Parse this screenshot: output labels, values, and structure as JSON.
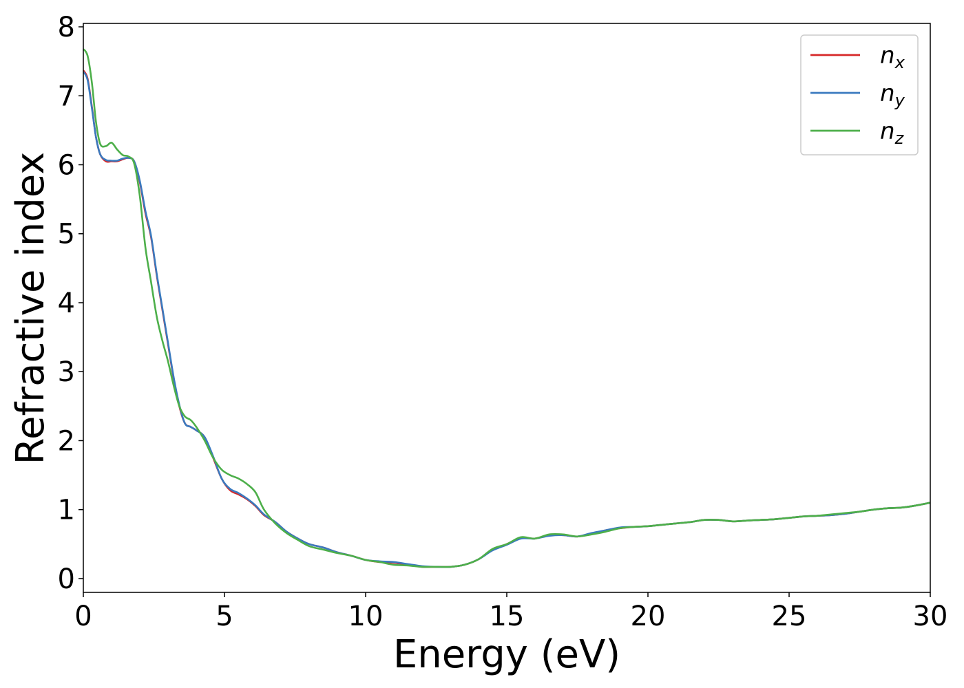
{
  "chart_data": {
    "type": "line",
    "title": "",
    "xlabel": "Energy (eV)",
    "ylabel": "Refractive index",
    "xlim": [
      0,
      30
    ],
    "ylim": [
      -0.2,
      8.05
    ],
    "xticks": [
      0,
      5,
      10,
      15,
      20,
      25,
      30
    ],
    "yticks": [
      0,
      1,
      2,
      3,
      4,
      5,
      6,
      7,
      8
    ],
    "grid": false,
    "legend_position": "top-right",
    "series": [
      {
        "name": "n_x",
        "legend_base": "n",
        "legend_sub": "x",
        "color": "#d62728",
        "points": [
          [
            0,
            7.37
          ],
          [
            0.15,
            7.25
          ],
          [
            0.3,
            6.85
          ],
          [
            0.45,
            6.4
          ],
          [
            0.6,
            6.15
          ],
          [
            0.8,
            6.05
          ],
          [
            1.0,
            6.05
          ],
          [
            1.2,
            6.05
          ],
          [
            1.4,
            6.08
          ],
          [
            1.6,
            6.1
          ],
          [
            1.8,
            6.05
          ],
          [
            2.0,
            5.75
          ],
          [
            2.2,
            5.3
          ],
          [
            2.4,
            4.95
          ],
          [
            2.6,
            4.4
          ],
          [
            2.8,
            3.9
          ],
          [
            3.0,
            3.4
          ],
          [
            3.2,
            2.9
          ],
          [
            3.4,
            2.5
          ],
          [
            3.6,
            2.25
          ],
          [
            3.8,
            2.2
          ],
          [
            4.0,
            2.15
          ],
          [
            4.3,
            2.05
          ],
          [
            4.6,
            1.75
          ],
          [
            4.9,
            1.45
          ],
          [
            5.2,
            1.28
          ],
          [
            5.5,
            1.22
          ],
          [
            5.8,
            1.15
          ],
          [
            6.1,
            1.05
          ],
          [
            6.4,
            0.92
          ],
          [
            6.8,
            0.82
          ],
          [
            7.2,
            0.68
          ],
          [
            7.6,
            0.58
          ],
          [
            8.0,
            0.5
          ],
          [
            8.5,
            0.45
          ],
          [
            9.0,
            0.38
          ],
          [
            9.5,
            0.33
          ],
          [
            10.0,
            0.27
          ],
          [
            10.5,
            0.24
          ],
          [
            11.0,
            0.23
          ],
          [
            11.5,
            0.2
          ],
          [
            12.0,
            0.17
          ],
          [
            12.5,
            0.17
          ],
          [
            13.0,
            0.17
          ],
          [
            13.5,
            0.2
          ],
          [
            14.0,
            0.28
          ],
          [
            14.5,
            0.42
          ],
          [
            15.0,
            0.5
          ],
          [
            15.5,
            0.59
          ],
          [
            16.0,
            0.58
          ],
          [
            16.5,
            0.63
          ],
          [
            17.0,
            0.63
          ],
          [
            17.5,
            0.61
          ],
          [
            18.0,
            0.65
          ],
          [
            18.5,
            0.7
          ],
          [
            19.0,
            0.73
          ],
          [
            19.5,
            0.75
          ],
          [
            20.0,
            0.76
          ],
          [
            20.5,
            0.78
          ],
          [
            21.0,
            0.8
          ],
          [
            21.5,
            0.82
          ],
          [
            22.0,
            0.85
          ],
          [
            22.5,
            0.85
          ],
          [
            23.0,
            0.83
          ],
          [
            23.5,
            0.84
          ],
          [
            24.0,
            0.85
          ],
          [
            24.5,
            0.86
          ],
          [
            25.0,
            0.88
          ],
          [
            25.5,
            0.9
          ],
          [
            26.0,
            0.91
          ],
          [
            26.5,
            0.92
          ],
          [
            27.0,
            0.94
          ],
          [
            27.5,
            0.97
          ],
          [
            28.0,
            1.0
          ],
          [
            28.5,
            1.02
          ],
          [
            29.0,
            1.03
          ],
          [
            29.5,
            1.06
          ],
          [
            30.0,
            1.1
          ]
        ]
      },
      {
        "name": "n_y",
        "legend_base": "n",
        "legend_sub": "y",
        "color": "#3a7abf",
        "points": [
          [
            0,
            7.35
          ],
          [
            0.15,
            7.23
          ],
          [
            0.3,
            6.83
          ],
          [
            0.45,
            6.4
          ],
          [
            0.6,
            6.15
          ],
          [
            0.8,
            6.07
          ],
          [
            1.0,
            6.06
          ],
          [
            1.2,
            6.06
          ],
          [
            1.4,
            6.09
          ],
          [
            1.6,
            6.1
          ],
          [
            1.8,
            6.05
          ],
          [
            2.0,
            5.77
          ],
          [
            2.2,
            5.33
          ],
          [
            2.4,
            4.97
          ],
          [
            2.6,
            4.42
          ],
          [
            2.8,
            3.92
          ],
          [
            3.0,
            3.42
          ],
          [
            3.2,
            2.92
          ],
          [
            3.4,
            2.52
          ],
          [
            3.6,
            2.25
          ],
          [
            3.8,
            2.2
          ],
          [
            4.0,
            2.15
          ],
          [
            4.3,
            2.05
          ],
          [
            4.6,
            1.77
          ],
          [
            4.9,
            1.45
          ],
          [
            5.2,
            1.3
          ],
          [
            5.5,
            1.24
          ],
          [
            5.8,
            1.16
          ],
          [
            6.1,
            1.06
          ],
          [
            6.4,
            0.93
          ],
          [
            6.8,
            0.82
          ],
          [
            7.2,
            0.68
          ],
          [
            7.6,
            0.58
          ],
          [
            8.0,
            0.5
          ],
          [
            8.5,
            0.45
          ],
          [
            9.0,
            0.38
          ],
          [
            9.5,
            0.33
          ],
          [
            10.0,
            0.27
          ],
          [
            10.5,
            0.25
          ],
          [
            11.0,
            0.24
          ],
          [
            11.5,
            0.21
          ],
          [
            12.0,
            0.18
          ],
          [
            12.5,
            0.17
          ],
          [
            13.0,
            0.17
          ],
          [
            13.5,
            0.2
          ],
          [
            14.0,
            0.28
          ],
          [
            14.5,
            0.41
          ],
          [
            15.0,
            0.49
          ],
          [
            15.5,
            0.58
          ],
          [
            16.0,
            0.58
          ],
          [
            16.5,
            0.62
          ],
          [
            17.0,
            0.63
          ],
          [
            17.5,
            0.61
          ],
          [
            18.0,
            0.66
          ],
          [
            18.5,
            0.7
          ],
          [
            19.0,
            0.74
          ],
          [
            19.5,
            0.75
          ],
          [
            20.0,
            0.76
          ],
          [
            20.5,
            0.78
          ],
          [
            21.0,
            0.8
          ],
          [
            21.5,
            0.82
          ],
          [
            22.0,
            0.85
          ],
          [
            22.5,
            0.85
          ],
          [
            23.0,
            0.83
          ],
          [
            23.5,
            0.84
          ],
          [
            24.0,
            0.85
          ],
          [
            24.5,
            0.86
          ],
          [
            25.0,
            0.88
          ],
          [
            25.5,
            0.9
          ],
          [
            26.0,
            0.91
          ],
          [
            26.5,
            0.92
          ],
          [
            27.0,
            0.94
          ],
          [
            27.5,
            0.97
          ],
          [
            28.0,
            1.0
          ],
          [
            28.5,
            1.02
          ],
          [
            29.0,
            1.03
          ],
          [
            29.5,
            1.06
          ],
          [
            30.0,
            1.1
          ]
        ]
      },
      {
        "name": "n_z",
        "legend_base": "n",
        "legend_sub": "z",
        "color": "#4daf4a",
        "points": [
          [
            0,
            7.68
          ],
          [
            0.15,
            7.58
          ],
          [
            0.3,
            7.2
          ],
          [
            0.45,
            6.62
          ],
          [
            0.6,
            6.3
          ],
          [
            0.8,
            6.27
          ],
          [
            1.0,
            6.32
          ],
          [
            1.2,
            6.22
          ],
          [
            1.4,
            6.14
          ],
          [
            1.6,
            6.12
          ],
          [
            1.8,
            6.02
          ],
          [
            2.0,
            5.55
          ],
          [
            2.2,
            4.8
          ],
          [
            2.4,
            4.3
          ],
          [
            2.6,
            3.8
          ],
          [
            2.8,
            3.45
          ],
          [
            3.0,
            3.15
          ],
          [
            3.2,
            2.8
          ],
          [
            3.4,
            2.5
          ],
          [
            3.6,
            2.35
          ],
          [
            3.8,
            2.3
          ],
          [
            4.0,
            2.2
          ],
          [
            4.3,
            2.0
          ],
          [
            4.6,
            1.75
          ],
          [
            4.9,
            1.58
          ],
          [
            5.2,
            1.5
          ],
          [
            5.5,
            1.45
          ],
          [
            5.8,
            1.37
          ],
          [
            6.1,
            1.25
          ],
          [
            6.4,
            1.0
          ],
          [
            6.8,
            0.8
          ],
          [
            7.2,
            0.66
          ],
          [
            7.6,
            0.56
          ],
          [
            8.0,
            0.47
          ],
          [
            8.5,
            0.42
          ],
          [
            9.0,
            0.37
          ],
          [
            9.5,
            0.33
          ],
          [
            10.0,
            0.27
          ],
          [
            10.5,
            0.24
          ],
          [
            11.0,
            0.2
          ],
          [
            11.5,
            0.19
          ],
          [
            12.0,
            0.17
          ],
          [
            12.5,
            0.17
          ],
          [
            13.0,
            0.17
          ],
          [
            13.5,
            0.2
          ],
          [
            14.0,
            0.28
          ],
          [
            14.5,
            0.43
          ],
          [
            15.0,
            0.5
          ],
          [
            15.5,
            0.6
          ],
          [
            16.0,
            0.58
          ],
          [
            16.5,
            0.64
          ],
          [
            17.0,
            0.64
          ],
          [
            17.5,
            0.61
          ],
          [
            18.0,
            0.64
          ],
          [
            18.5,
            0.68
          ],
          [
            19.0,
            0.73
          ],
          [
            19.5,
            0.75
          ],
          [
            20.0,
            0.76
          ],
          [
            20.5,
            0.78
          ],
          [
            21.0,
            0.8
          ],
          [
            21.5,
            0.82
          ],
          [
            22.0,
            0.85
          ],
          [
            22.5,
            0.85
          ],
          [
            23.0,
            0.83
          ],
          [
            23.5,
            0.84
          ],
          [
            24.0,
            0.85
          ],
          [
            24.5,
            0.86
          ],
          [
            25.0,
            0.88
          ],
          [
            25.5,
            0.9
          ],
          [
            26.0,
            0.91
          ],
          [
            26.5,
            0.93
          ],
          [
            27.0,
            0.95
          ],
          [
            27.5,
            0.97
          ],
          [
            28.0,
            1.0
          ],
          [
            28.5,
            1.02
          ],
          [
            29.0,
            1.03
          ],
          [
            29.5,
            1.06
          ],
          [
            30.0,
            1.1
          ]
        ]
      }
    ]
  }
}
